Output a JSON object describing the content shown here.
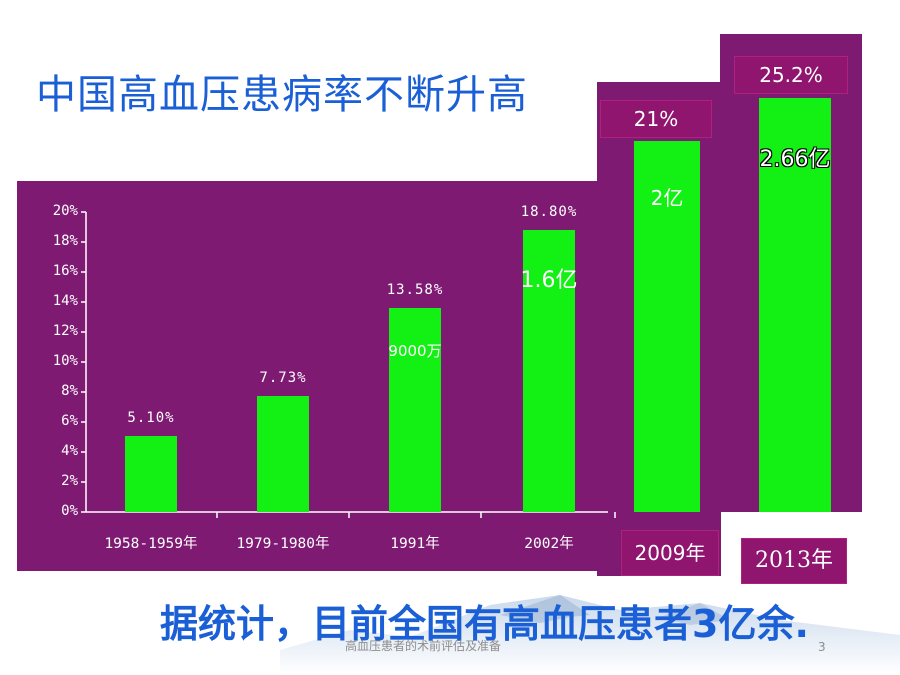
{
  "title": "中国高血压患病率不断升高",
  "summary": "据统计，目前全国有高血压患者3亿余.",
  "footnote": "高血压患者的术前评估及准备",
  "page_number": "3",
  "colors": {
    "panel": "#7f1a73",
    "bar": "#13f014",
    "title": "#1a5fd6"
  },
  "chart_data": [
    {
      "type": "bar",
      "categories": [
        "1958-1959年",
        "1979-1980年",
        "1991年",
        "2002年"
      ],
      "values": [
        5.1,
        7.73,
        13.58,
        18.8
      ],
      "value_labels": [
        "5.10%",
        "7.73%",
        "13.58%",
        "18.80%"
      ],
      "population_labels": [
        "",
        "",
        "9000万",
        "1.6亿"
      ],
      "yticks": [
        "0%",
        "2%",
        "4%",
        "6%",
        "8%",
        "10%",
        "12%",
        "14%",
        "16%",
        "18%",
        "20%"
      ],
      "ylim": [
        0,
        20
      ],
      "grid": false
    },
    {
      "type": "bar",
      "categories": [
        "2009年",
        "2013年"
      ],
      "values": [
        21,
        25.2
      ],
      "value_labels": [
        "21%",
        "25.2%"
      ],
      "population_labels": [
        "2亿",
        "2.66亿"
      ]
    }
  ]
}
